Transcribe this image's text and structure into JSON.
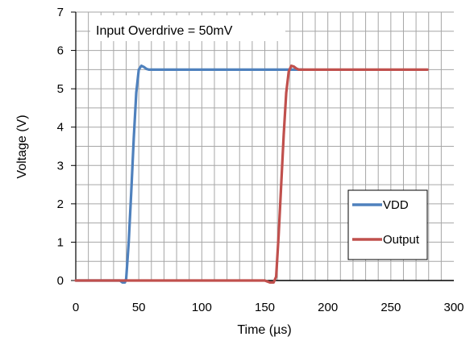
{
  "chart_data": {
    "type": "line",
    "annotation": "Input Overdrive = 50mV",
    "xlabel": "Time (µs)",
    "ylabel": "Voltage (V)",
    "xlim": [
      0,
      300
    ],
    "ylim": [
      0,
      7
    ],
    "x_ticks": [
      0,
      50,
      100,
      150,
      200,
      250,
      300
    ],
    "y_ticks": [
      0,
      1,
      2,
      3,
      4,
      5,
      6,
      7
    ],
    "x_minor_step": 10,
    "y_minor_step": 0.5,
    "grid": true,
    "legend_position": "right-middle",
    "series": [
      {
        "name": "VDD",
        "color": "#4f81bd",
        "points": [
          [
            0,
            0
          ],
          [
            35,
            0
          ],
          [
            37,
            -0.05
          ],
          [
            39,
            -0.05
          ],
          [
            40,
            0.05
          ],
          [
            42,
            1.0
          ],
          [
            44,
            2.3
          ],
          [
            46,
            3.7
          ],
          [
            48,
            4.9
          ],
          [
            50,
            5.5
          ],
          [
            52,
            5.6
          ],
          [
            54,
            5.57
          ],
          [
            56,
            5.52
          ],
          [
            58,
            5.5
          ],
          [
            60,
            5.5
          ],
          [
            120,
            5.5
          ],
          [
            180,
            5.5
          ]
        ]
      },
      {
        "name": "Output",
        "color": "#c0504d",
        "points": [
          [
            0,
            0
          ],
          [
            150,
            0
          ],
          [
            154,
            -0.05
          ],
          [
            157,
            -0.05
          ],
          [
            159,
            0.1
          ],
          [
            161,
            1.2
          ],
          [
            163,
            2.5
          ],
          [
            165,
            3.8
          ],
          [
            167,
            4.9
          ],
          [
            169,
            5.45
          ],
          [
            171,
            5.6
          ],
          [
            173,
            5.58
          ],
          [
            175,
            5.53
          ],
          [
            177,
            5.5
          ],
          [
            180,
            5.5
          ],
          [
            230,
            5.5
          ],
          [
            279,
            5.5
          ]
        ]
      }
    ]
  }
}
